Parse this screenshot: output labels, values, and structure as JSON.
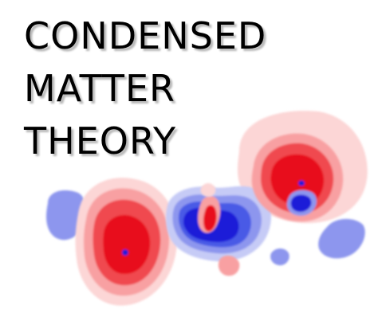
{
  "title": {
    "lines": [
      "CONDENSED",
      "MATTER",
      "THEORY"
    ]
  },
  "illustration": {
    "name": "charge-density-difference-plot",
    "colors": {
      "positive_deep": "#e8101a",
      "positive_mid": "#f04a4f",
      "positive_light": "#f8a0a2",
      "positive_pale": "#fcd6d6",
      "negative_deep": "#1a1ad8",
      "negative_mid": "#4a5ae6",
      "negative_light": "#8d96ee",
      "negative_pale": "#c6cbf6"
    }
  }
}
